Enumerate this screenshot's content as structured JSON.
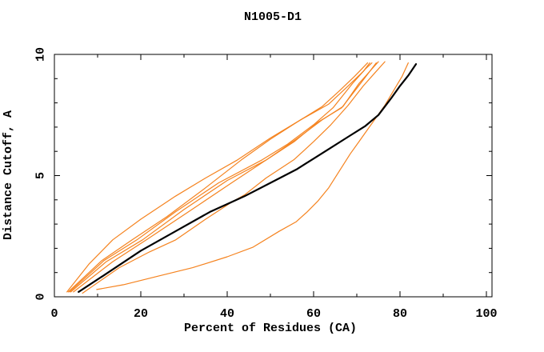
{
  "window": {
    "title": "N1005-D1"
  },
  "colors": {
    "accent_orange": "#f5831f",
    "reference_black": "#000000",
    "background": "#ffffff"
  },
  "chart_data": {
    "type": "line",
    "title": "N1005-D1",
    "xlabel": "Percent of Residues (CA)",
    "ylabel": "Distance Cutoff, A",
    "xlim": [
      0,
      100
    ],
    "ylim": [
      0,
      10
    ],
    "x_major_ticks": [
      0,
      20,
      40,
      60,
      80,
      100
    ],
    "x_minor_ticks": [
      10,
      30,
      50,
      70,
      90
    ],
    "y_major_ticks": [
      0,
      5,
      10
    ],
    "y_minor_ticks": [
      1,
      2,
      3,
      4,
      6,
      7,
      8,
      9
    ],
    "grid": false,
    "legend": "none",
    "series": [
      {
        "name": "model-orange-1",
        "color": "#f5831f",
        "width": 1.2,
        "points": [
          [
            2.9,
            0.2
          ],
          [
            8,
            1.35
          ],
          [
            13.5,
            2.35
          ],
          [
            20,
            3.2
          ],
          [
            28,
            4.15
          ],
          [
            35,
            4.9
          ],
          [
            42.4,
            5.65
          ],
          [
            50,
            6.55
          ],
          [
            57,
            7.3
          ],
          [
            62,
            7.85
          ],
          [
            66,
            8.5
          ],
          [
            69.5,
            9.1
          ],
          [
            72.5,
            9.65
          ]
        ]
      },
      {
        "name": "model-orange-2",
        "color": "#f5831f",
        "width": 1.2,
        "points": [
          [
            3.2,
            0.2
          ],
          [
            11,
            1.5
          ],
          [
            18,
            2.35
          ],
          [
            26,
            3.3
          ],
          [
            35,
            4.5
          ],
          [
            43.3,
            5.65
          ],
          [
            50,
            6.5
          ],
          [
            57,
            7.3
          ],
          [
            63.5,
            7.95
          ],
          [
            68,
            8.7
          ],
          [
            71.5,
            9.3
          ],
          [
            73,
            9.65
          ]
        ]
      },
      {
        "name": "model-orange-3",
        "color": "#f5831f",
        "width": 1.2,
        "points": [
          [
            3.5,
            0.2
          ],
          [
            11.5,
            1.5
          ],
          [
            19.1,
            2.35
          ],
          [
            28,
            3.5
          ],
          [
            38,
            4.7
          ],
          [
            48.1,
            5.65
          ],
          [
            54,
            6.3
          ],
          [
            60,
            7.1
          ],
          [
            64.5,
            7.8
          ],
          [
            69,
            8.8
          ],
          [
            72,
            9.4
          ],
          [
            73.5,
            9.65
          ]
        ]
      },
      {
        "name": "model-orange-4",
        "color": "#f5831f",
        "width": 1.2,
        "points": [
          [
            3.8,
            0.2
          ],
          [
            12,
            1.45
          ],
          [
            20.4,
            2.35
          ],
          [
            30,
            3.6
          ],
          [
            40,
            4.8
          ],
          [
            49.1,
            5.65
          ],
          [
            55.5,
            6.4
          ],
          [
            61,
            7.2
          ],
          [
            66.5,
            7.8
          ],
          [
            70,
            8.6
          ],
          [
            73,
            9.3
          ],
          [
            74.5,
            9.65
          ]
        ]
      },
      {
        "name": "model-orange-5",
        "color": "#f5831f",
        "width": 1.2,
        "points": [
          [
            4.4,
            0.2
          ],
          [
            13.5,
            1.45
          ],
          [
            21.3,
            2.35
          ],
          [
            31,
            3.5
          ],
          [
            41,
            4.7
          ],
          [
            49.5,
            5.7
          ],
          [
            56,
            6.5
          ],
          [
            62,
            7.3
          ],
          [
            66.8,
            7.85
          ],
          [
            70.5,
            8.8
          ],
          [
            74,
            9.5
          ],
          [
            75,
            9.7
          ]
        ]
      },
      {
        "name": "model-orange-6",
        "color": "#f5831f",
        "width": 1.2,
        "points": [
          [
            6.5,
            0.15
          ],
          [
            15,
            1.2
          ],
          [
            22,
            1.85
          ],
          [
            28.1,
            2.35
          ],
          [
            35,
            3.2
          ],
          [
            41,
            3.9
          ],
          [
            44,
            4.2
          ],
          [
            49,
            4.9
          ],
          [
            55.4,
            5.65
          ],
          [
            60,
            6.4
          ],
          [
            64,
            7.1
          ],
          [
            68,
            7.9
          ],
          [
            71.5,
            8.7
          ],
          [
            74,
            9.2
          ],
          [
            76.5,
            9.7
          ]
        ]
      },
      {
        "name": "model-orange-7-outlier",
        "color": "#f5831f",
        "width": 1.2,
        "points": [
          [
            9.8,
            0.3
          ],
          [
            16,
            0.5
          ],
          [
            24,
            0.85
          ],
          [
            32,
            1.2
          ],
          [
            40,
            1.65
          ],
          [
            46,
            2.05
          ],
          [
            52,
            2.7
          ],
          [
            56,
            3.1
          ],
          [
            58.5,
            3.5
          ],
          [
            61,
            3.95
          ],
          [
            63.5,
            4.5
          ],
          [
            66,
            5.2
          ],
          [
            68.5,
            5.9
          ],
          [
            70.5,
            6.4
          ],
          [
            72.5,
            6.9
          ],
          [
            74.5,
            7.4
          ],
          [
            76.5,
            7.9
          ],
          [
            78.5,
            8.5
          ],
          [
            80.5,
            9.1
          ],
          [
            81.9,
            9.65
          ]
        ]
      },
      {
        "name": "reference-black",
        "color": "#000000",
        "width": 2.2,
        "points": [
          [
            5.6,
            0.2
          ],
          [
            12,
            0.95
          ],
          [
            20,
            1.9
          ],
          [
            28,
            2.7
          ],
          [
            36,
            3.5
          ],
          [
            44,
            4.15
          ],
          [
            50,
            4.7
          ],
          [
            56,
            5.25
          ],
          [
            60,
            5.7
          ],
          [
            64,
            6.15
          ],
          [
            68,
            6.6
          ],
          [
            72,
            7.05
          ],
          [
            75,
            7.5
          ],
          [
            78,
            8.2
          ],
          [
            80,
            8.7
          ],
          [
            82,
            9.15
          ],
          [
            83.7,
            9.6
          ]
        ]
      }
    ]
  }
}
